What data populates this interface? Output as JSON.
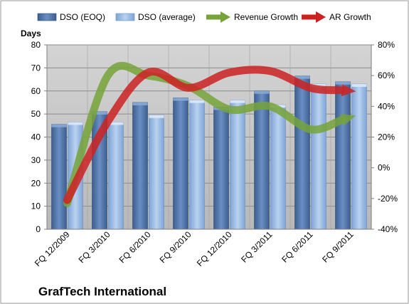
{
  "chart_data": {
    "type": "bar",
    "title": "GrafTech International",
    "ylabel": "Days",
    "categories": [
      "FQ 12/2009",
      "FQ 3/2010",
      "FQ 6/2010",
      "FQ 9/2010",
      "FQ 12/2010",
      "FQ 3/2011",
      "FQ 6/2011",
      "FQ 9/2011"
    ],
    "ylim": [
      0,
      80
    ],
    "yticks": [
      0,
      10,
      20,
      30,
      40,
      50,
      60,
      70,
      80
    ],
    "y2lim": [
      -40,
      80
    ],
    "y2ticks": [
      "-40%",
      "-20%",
      "0%",
      "20%",
      "40%",
      "60%",
      "80%"
    ],
    "y2values": [
      -40,
      -20,
      0,
      20,
      40,
      60,
      80
    ],
    "series": [
      {
        "name": "DSO (EOQ)",
        "kind": "bar",
        "axis": "left",
        "color": "#4a6fa5",
        "values": [
          45.5,
          51,
          55,
          57,
          53,
          60,
          66.5,
          64
        ]
      },
      {
        "name": "DSO (average)",
        "kind": "bar",
        "axis": "left",
        "color": "#8fb4e3",
        "values": [
          46.5,
          46.5,
          49.5,
          56,
          56,
          54,
          63,
          63
        ]
      },
      {
        "name": "Revenue Growth",
        "kind": "arrow",
        "axis": "right",
        "color": "#77a33a",
        "values": [
          -23,
          60,
          60,
          53,
          38,
          40,
          25,
          33
        ]
      },
      {
        "name": "AR Growth",
        "kind": "arrow",
        "axis": "right",
        "color": "#cc2222",
        "values": [
          -21,
          30,
          62,
          52,
          62,
          63,
          52,
          50
        ]
      }
    ],
    "grid": true,
    "legend": "top"
  }
}
